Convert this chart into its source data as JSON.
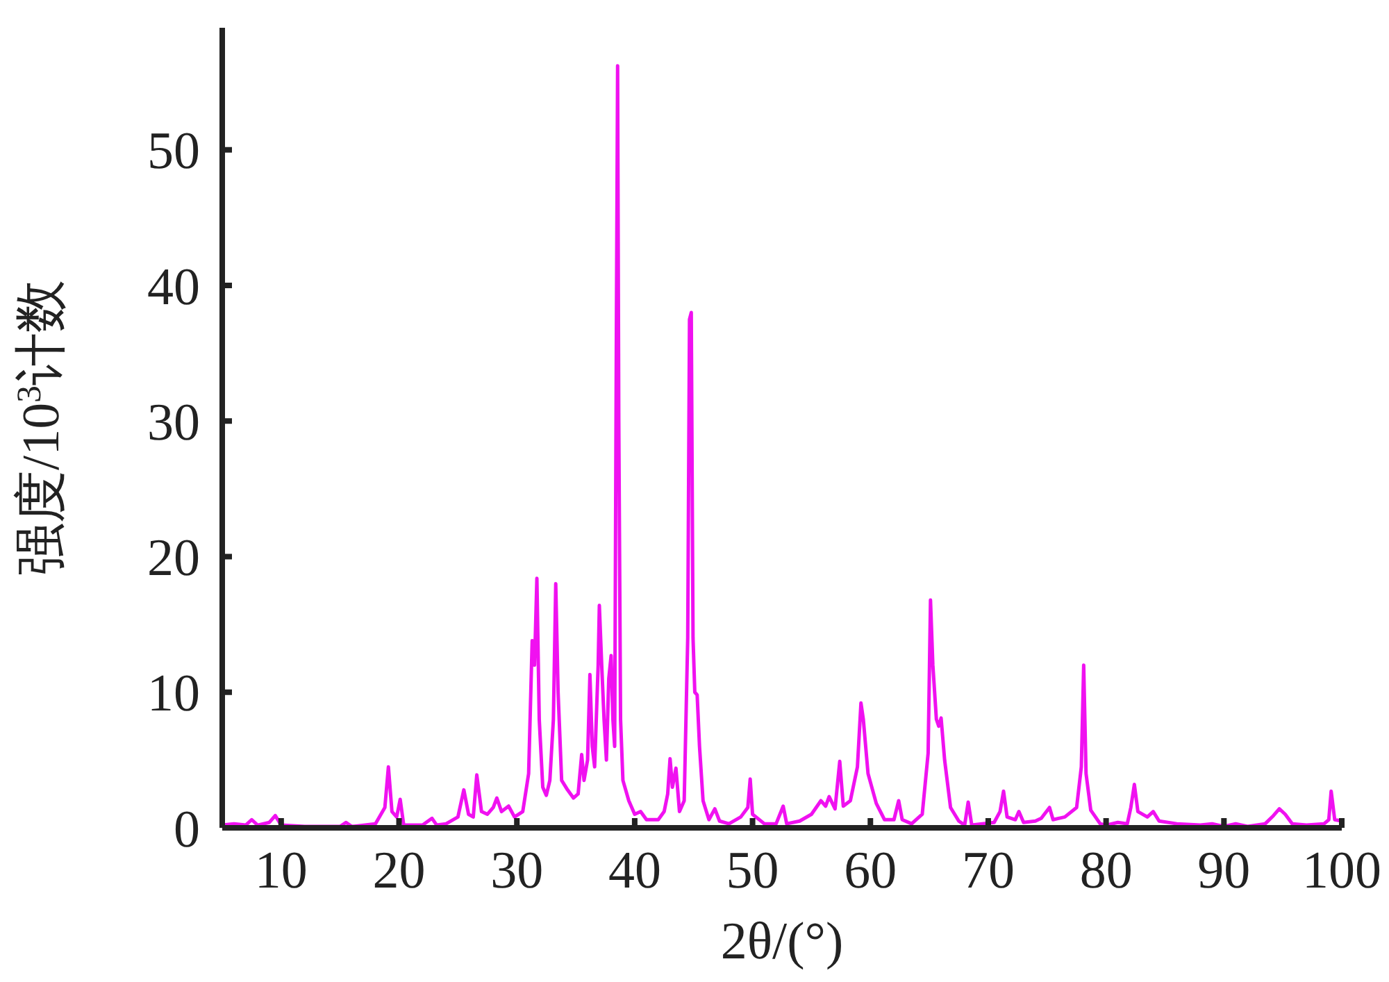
{
  "chart_data": {
    "type": "line",
    "xlabel": "2θ/(°)",
    "ylabel": "强度/10$^{3}$计数",
    "xlim": [
      5,
      100
    ],
    "xticks": [
      10,
      20,
      30,
      40,
      50,
      60,
      70,
      80,
      90,
      100
    ],
    "ylim": [
      0,
      59
    ],
    "yticks": [
      0,
      10,
      20,
      30,
      40,
      50
    ],
    "grid": false,
    "marker": "none",
    "line_style": "solid",
    "series": [
      {
        "color": "#f011f0",
        "x": [
          5,
          6,
          7,
          7.5,
          8,
          9,
          9.5,
          10,
          12,
          15,
          15.5,
          16,
          18,
          18.8,
          19.1,
          19.4,
          19.8,
          20.1,
          20.4,
          22,
          22.8,
          23.2,
          24,
          25,
          25.5,
          25.9,
          26.3,
          26.6,
          27,
          27.5,
          28,
          28.3,
          28.7,
          29.3,
          29.8,
          30.5,
          31,
          31.3,
          31.5,
          31.7,
          31.9,
          32.2,
          32.5,
          32.8,
          33.1,
          33.3,
          33.5,
          33.8,
          34.3,
          34.8,
          35.2,
          35.5,
          35.7,
          36,
          36.2,
          36.4,
          36.6,
          36.9,
          37,
          37.2,
          37.4,
          37.6,
          37.8,
          38,
          38.15,
          38.3,
          38.45,
          38.55,
          38.65,
          38.8,
          39,
          39.5,
          40,
          40.5,
          41,
          42,
          42.5,
          42.8,
          43,
          43.2,
          43.5,
          43.8,
          44.2,
          44.5,
          44.65,
          44.8,
          44.95,
          45.1,
          45.3,
          45.5,
          45.8,
          46.3,
          46.8,
          47.2,
          48,
          49,
          49.6,
          49.8,
          50,
          51,
          52,
          52.6,
          52.9,
          54,
          55,
          55.8,
          56.2,
          56.5,
          57,
          57.4,
          57.7,
          58.3,
          58.9,
          59.2,
          59.4,
          59.8,
          60.5,
          61.2,
          62,
          62.4,
          62.7,
          63.5,
          64.4,
          64.9,
          65.1,
          65.3,
          65.6,
          65.8,
          66,
          66.3,
          66.8,
          67.5,
          68,
          68.3,
          68.6,
          69.5,
          70.5,
          71,
          71.3,
          71.6,
          72.3,
          72.6,
          73,
          74,
          74.5,
          75.2,
          75.5,
          76.5,
          77.5,
          77.9,
          78.1,
          78.3,
          78.7,
          79.5,
          80,
          81,
          81.8,
          82.1,
          82.4,
          82.7,
          83.5,
          84,
          84.5,
          86,
          88,
          89,
          90,
          91,
          92,
          93.5,
          94.2,
          94.7,
          95.2,
          95.8,
          97,
          98.5,
          98.9,
          99.1,
          99.4,
          100
        ],
        "values": [
          0.2,
          0.3,
          0.2,
          0.6,
          0.2,
          0.4,
          0.9,
          0.2,
          0.1,
          0.1,
          0.4,
          0.1,
          0.3,
          1.5,
          4.5,
          1.2,
          0.8,
          2.1,
          0.2,
          0.2,
          0.7,
          0.2,
          0.3,
          0.8,
          2.8,
          1,
          0.8,
          3.9,
          1.2,
          1,
          1.5,
          2.2,
          1.2,
          1.6,
          0.8,
          1.2,
          4,
          13.8,
          12,
          18.4,
          8,
          3,
          2.4,
          3.5,
          8,
          18,
          10,
          3.5,
          2.8,
          2.2,
          2.5,
          5.4,
          3.5,
          5,
          11.3,
          6,
          4.5,
          12,
          16.4,
          12,
          8,
          5,
          11,
          12.7,
          8,
          6,
          37.5,
          56.2,
          30,
          8,
          3.5,
          2,
          1,
          1.2,
          0.6,
          0.6,
          1.2,
          2.5,
          5.1,
          3,
          4.4,
          1.2,
          2,
          14,
          37.5,
          38,
          14,
          10,
          9.8,
          6,
          2,
          0.6,
          1.4,
          0.5,
          0.3,
          0.8,
          1.5,
          3.6,
          1,
          0.3,
          0.3,
          1.6,
          0.3,
          0.5,
          1,
          2,
          1.6,
          2.3,
          1.4,
          4.9,
          1.6,
          2,
          4.5,
          9.2,
          8,
          4,
          1.8,
          0.6,
          0.6,
          2,
          0.6,
          0.3,
          1,
          5.5,
          16.8,
          12,
          8,
          7.5,
          8.1,
          5,
          1.5,
          0.5,
          0.2,
          1.9,
          0.2,
          0.3,
          0.4,
          1.2,
          2.7,
          0.8,
          0.6,
          1.2,
          0.4,
          0.5,
          0.7,
          1.5,
          0.6,
          0.8,
          1.5,
          4.5,
          12,
          4,
          1.3,
          0.3,
          0.2,
          0.4,
          0.3,
          1.5,
          3.2,
          1.2,
          0.8,
          1.2,
          0.5,
          0.3,
          0.2,
          0.3,
          0.1,
          0.3,
          0.1,
          0.3,
          0.9,
          1.4,
          1,
          0.3,
          0.2,
          0.3,
          0.6,
          2.7,
          0.6,
          0.5
        ]
      }
    ]
  }
}
